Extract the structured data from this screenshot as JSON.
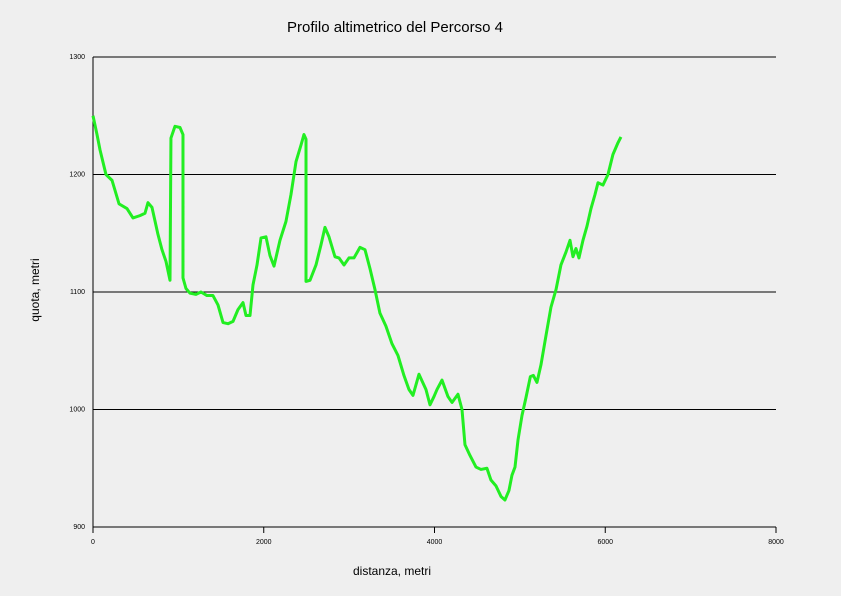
{
  "chart_data": {
    "type": "line",
    "title": "Profilo altimetrico del Percorso 4",
    "x_label": "distanza, metri",
    "y_label": "quota, metri",
    "xlim": [
      0,
      8000
    ],
    "xticks": [
      0,
      2000,
      4000,
      6000,
      8000
    ],
    "ylim": [
      900,
      1300
    ],
    "yticks": [
      900,
      1000,
      1100,
      1200,
      1300
    ],
    "grid": true,
    "x": [
      0,
      47,
      82,
      152,
      223,
      305,
      398,
      468,
      550,
      609,
      644,
      691,
      761,
      808,
      855,
      902,
      913,
      960,
      1019,
      1054,
      1054,
      1089,
      1136,
      1206,
      1265,
      1335,
      1405,
      1464,
      1523,
      1581,
      1640,
      1698,
      1757,
      1792,
      1839,
      1874,
      1921,
      1968,
      2026,
      2073,
      2120,
      2190,
      2260,
      2319,
      2378,
      2436,
      2471,
      2495,
      2495,
      2542,
      2612,
      2670,
      2717,
      2764,
      2834,
      2881,
      2940,
      2998,
      3057,
      3127,
      3186,
      3244,
      3303,
      3361,
      3431,
      3502,
      3572,
      3642,
      3701,
      3748,
      3818,
      3900,
      3947,
      3994,
      4029,
      4088,
      4158,
      4205,
      4275,
      4322,
      4357,
      4415,
      4486,
      4544,
      4614,
      4661,
      4720,
      4779,
      4825,
      4872,
      4907,
      4943,
      4978,
      5025,
      5071,
      5123,
      5158,
      5200,
      5247,
      5306,
      5364,
      5423,
      5481,
      5540,
      5587,
      5622,
      5657,
      5692,
      5739,
      5786,
      5833,
      5880,
      5915,
      5973,
      6032,
      6090,
      6149,
      6184
    ],
    "series": [
      {
        "name": "quota",
        "color": "#22ee22",
        "values": [
          1250,
          1234,
          1221,
          1200,
          1195,
          1175,
          1171,
          1163,
          1165,
          1167,
          1176,
          1172,
          1149,
          1136,
          1126,
          1110,
          1231,
          1241,
          1240,
          1234,
          1112,
          1103,
          1099,
          1098,
          1100,
          1097,
          1097,
          1089,
          1074,
          1073,
          1075,
          1085,
          1091,
          1080,
          1080,
          1106,
          1123,
          1146,
          1147,
          1131,
          1122,
          1144,
          1160,
          1183,
          1211,
          1225,
          1234,
          1230,
          1109,
          1110,
          1123,
          1140,
          1155,
          1147,
          1130,
          1129,
          1123,
          1129,
          1129,
          1138,
          1136,
          1120,
          1102,
          1082,
          1071,
          1056,
          1046,
          1029,
          1017,
          1012,
          1030,
          1017,
          1004,
          1011,
          1017,
          1025,
          1011,
          1006,
          1013,
          1000,
          970,
          961,
          951,
          949,
          950,
          940,
          935,
          926,
          923,
          931,
          944,
          951,
          974,
          995,
          1010,
          1028,
          1029,
          1023,
          1038,
          1063,
          1087,
          1102,
          1123,
          1134,
          1144,
          1130,
          1137,
          1129,
          1144,
          1156,
          1171,
          1183,
          1193,
          1191,
          1200,
          1217,
          1227,
          1232
        ]
      }
    ]
  }
}
